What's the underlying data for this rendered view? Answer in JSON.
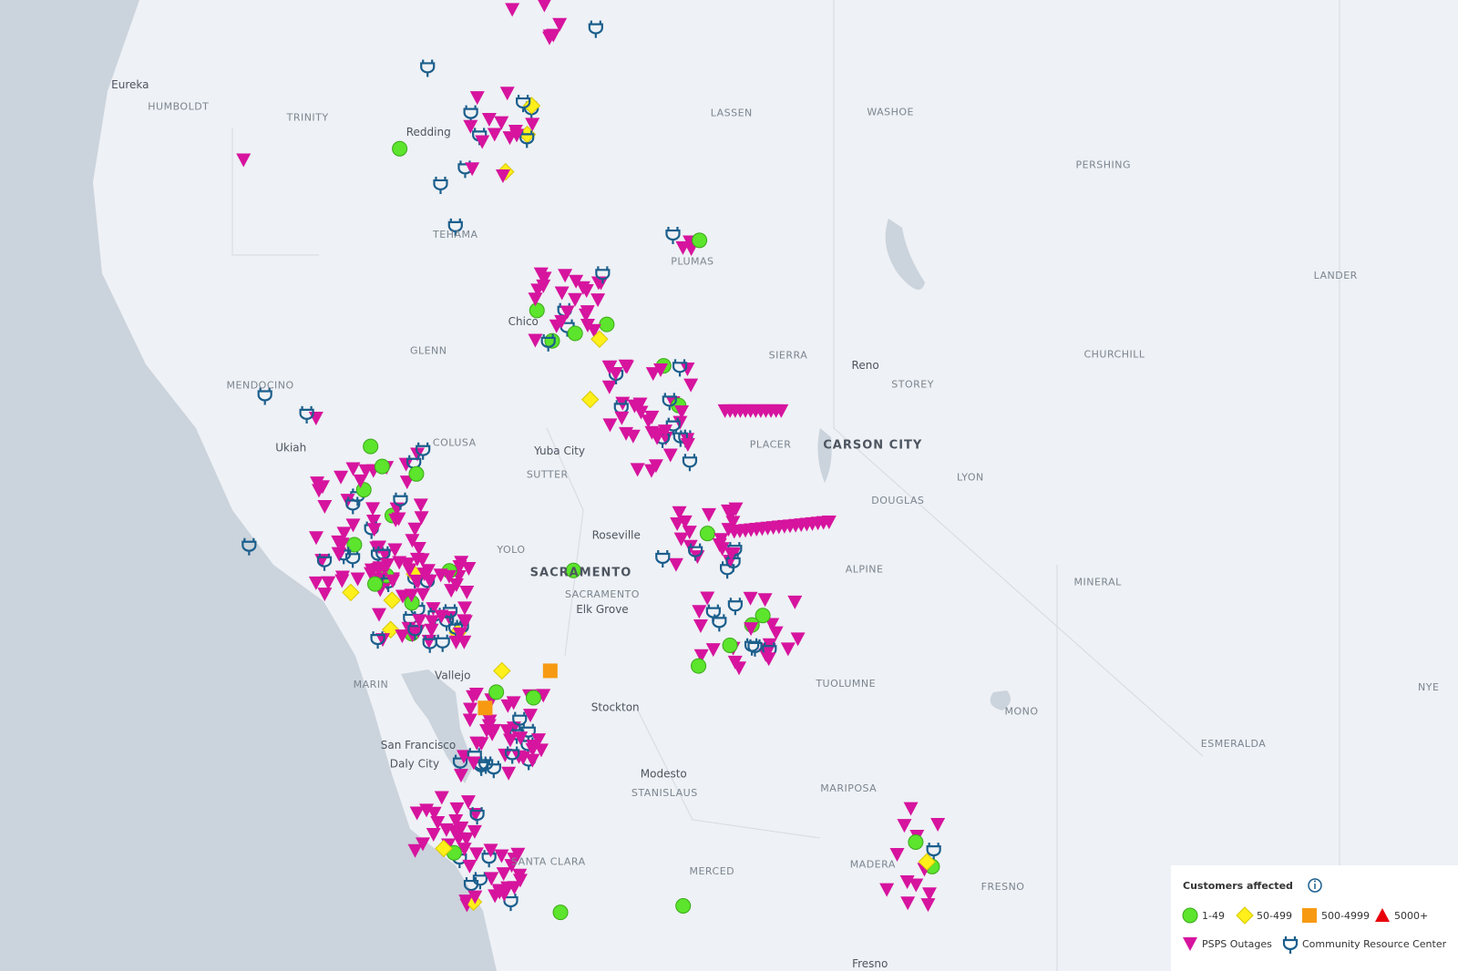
{
  "labels": [
    "Eureka",
    "HUMBOLDT",
    "TRINITY",
    "Redding",
    "LASSEN",
    "WASHOE",
    "PERSHING",
    "TEHAMA",
    "PLUMAS",
    "LANDER",
    "Chico",
    "GLENN",
    "SIERRA",
    "Reno",
    "STOREY",
    "CHURCHILL",
    "MENDOCINO",
    "COLUSA",
    "Ukiah",
    "Yuba City",
    "PLACER",
    "CARSON CITY",
    "SUTTER",
    "LYON",
    "DOUGLAS",
    "Roseville",
    "YOLO",
    "SACRAMENTO",
    "ALPINE",
    "MINERAL",
    "SACRAMENTO",
    "Elk Grove",
    "Vallejo",
    "MARIN",
    "TUOLUMNE",
    "Stockton",
    "MONO",
    "NYE",
    "San Francisco",
    "ESMERALDA",
    "Daly City",
    "Modesto",
    "STANISLAUS",
    "MARIPOSA",
    "SANTA CLARA",
    "MADERA",
    "MERCED",
    "FRESNO",
    "Fresno"
  ],
  "legend": {
    "title": "Customers affected",
    "items": [
      "1-49",
      "50-499",
      "500-4999",
      "5000+",
      "PSPS Outages",
      "Community Resource Center"
    ]
  }
}
